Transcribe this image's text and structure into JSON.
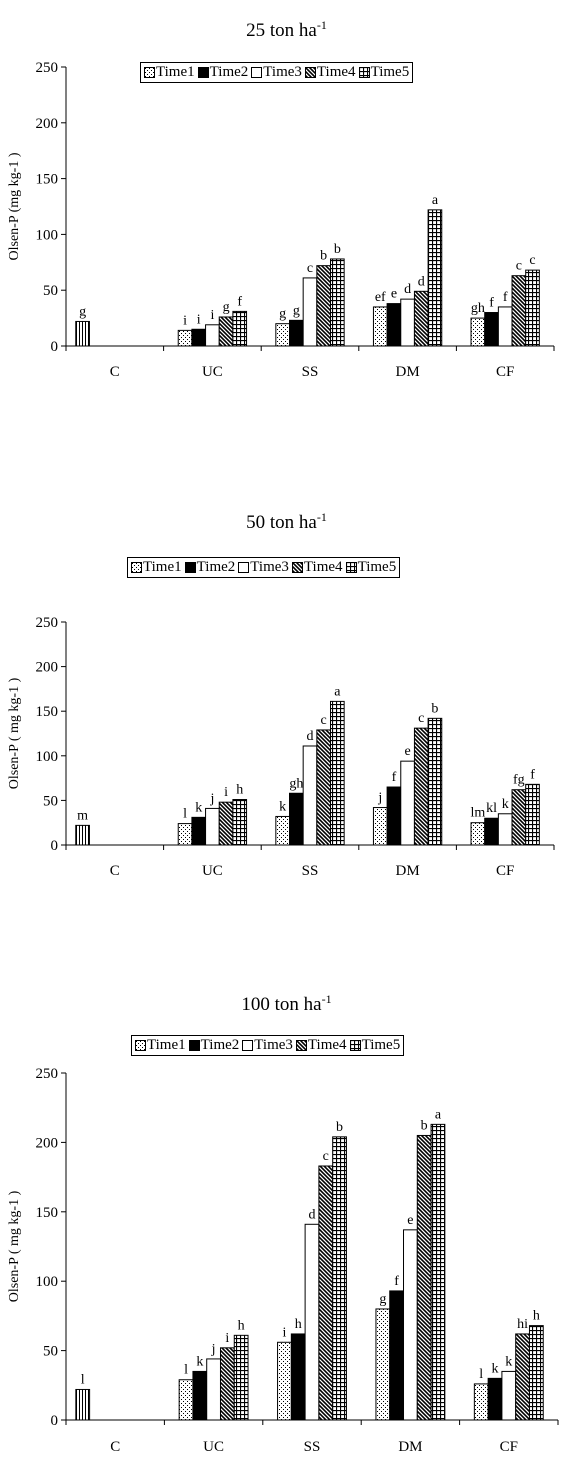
{
  "chart_data": [
    {
      "type": "bar",
      "title_main": "25 ton ha",
      "title_sup": "-1",
      "ylabel": "Olsen-P (mg kg-1  )",
      "ylim": [
        0,
        250
      ],
      "yticks": [
        "0",
        "50",
        "100",
        "150",
        "200",
        "250"
      ],
      "categories": [
        "C",
        "UC",
        "SS",
        "DM",
        "CF"
      ],
      "legend_placement": "top-center",
      "grid": false,
      "series": [
        {
          "name": "Time1",
          "values": [
            null,
            14,
            20,
            35,
            25
          ],
          "letters": [
            "",
            "i",
            "g",
            "ef",
            "gh"
          ]
        },
        {
          "name": "Time2",
          "values": [
            null,
            15,
            23,
            38,
            30
          ],
          "letters": [
            "",
            "i",
            "g",
            "e",
            "f"
          ]
        },
        {
          "name": "Time3",
          "values": [
            null,
            19,
            61,
            42,
            35
          ],
          "letters": [
            "",
            "i",
            "c",
            "d",
            "f"
          ]
        },
        {
          "name": "Time4",
          "values": [
            null,
            26,
            72,
            49,
            63
          ],
          "letters": [
            "",
            "g",
            "b",
            "d",
            "c"
          ]
        },
        {
          "name": "Time5",
          "values": [
            null,
            31,
            78,
            122,
            68
          ],
          "letters": [
            "",
            "f",
            "b",
            "a",
            "c"
          ]
        }
      ],
      "control": {
        "value": 22,
        "letter": "g"
      }
    },
    {
      "type": "bar",
      "title_main": "50 ton ha",
      "title_sup": "-1",
      "ylabel": "Olsen-P ( mg kg-1  )",
      "ylim": [
        0,
        250
      ],
      "yticks": [
        "0",
        "50",
        "100",
        "150",
        "200",
        "250"
      ],
      "categories": [
        "C",
        "UC",
        "SS",
        "DM",
        "CF"
      ],
      "legend_placement": "top-center",
      "grid": false,
      "series": [
        {
          "name": "Time1",
          "values": [
            null,
            24,
            32,
            42,
            25
          ],
          "letters": [
            "",
            "l",
            "k",
            "j",
            "lm"
          ]
        },
        {
          "name": "Time2",
          "values": [
            null,
            31,
            58,
            65,
            30
          ],
          "letters": [
            "",
            "k",
            "gh",
            "f",
            "kl"
          ]
        },
        {
          "name": "Time3",
          "values": [
            null,
            41,
            111,
            94,
            35
          ],
          "letters": [
            "",
            "j",
            "d",
            "e",
            "k"
          ]
        },
        {
          "name": "Time4",
          "values": [
            null,
            48,
            129,
            131,
            62
          ],
          "letters": [
            "",
            "i",
            "c",
            "c",
            "fg"
          ]
        },
        {
          "name": "Time5",
          "values": [
            null,
            51,
            161,
            142,
            68
          ],
          "letters": [
            "",
            "h",
            "a",
            "b",
            "f"
          ]
        }
      ],
      "control": {
        "value": 22,
        "letter": "m"
      }
    },
    {
      "type": "bar",
      "title_main": "100 ton ha",
      "title_sup": "-1",
      "ylabel": "Olsen-P ( mg kg-1 )",
      "ylim": [
        0,
        250
      ],
      "yticks": [
        "0",
        "50",
        "100",
        "150",
        "200",
        "250"
      ],
      "categories": [
        "C",
        "UC",
        "SS",
        "DM",
        "CF"
      ],
      "legend_placement": "top-center",
      "grid": false,
      "series": [
        {
          "name": "Time1",
          "values": [
            null,
            29,
            56,
            80,
            26
          ],
          "letters": [
            "",
            "l",
            "i",
            "g",
            "l"
          ]
        },
        {
          "name": "Time2",
          "values": [
            null,
            35,
            62,
            93,
            30
          ],
          "letters": [
            "",
            "k",
            "h",
            "f",
            "k"
          ]
        },
        {
          "name": "Time3",
          "values": [
            null,
            44,
            141,
            137,
            35
          ],
          "letters": [
            "",
            "j",
            "d",
            "e",
            "k"
          ]
        },
        {
          "name": "Time4",
          "values": [
            null,
            52,
            183,
            205,
            62
          ],
          "letters": [
            "",
            "i",
            "c",
            "b",
            "hi"
          ]
        },
        {
          "name": "Time5",
          "values": [
            null,
            61,
            204,
            213,
            68
          ],
          "letters": [
            "",
            "h",
            "b",
            "a",
            "h"
          ]
        }
      ],
      "control": {
        "value": 22,
        "letter": "l"
      }
    }
  ]
}
